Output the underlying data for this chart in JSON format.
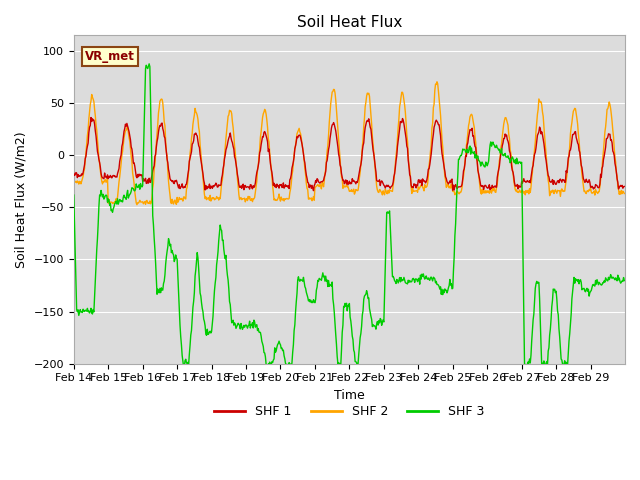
{
  "title": "Soil Heat Flux",
  "xlabel": "Time",
  "ylabel": "Soil Heat Flux (W/m2)",
  "ylim": [
    -200,
    115
  ],
  "xlim": [
    0,
    384
  ],
  "bg_color": "#dcdcdc",
  "fig_color": "#ffffff",
  "shf1_color": "#cc0000",
  "shf2_color": "#ffa500",
  "shf3_color": "#00cc00",
  "label_box_text": "VR_met",
  "legend_labels": [
    "SHF 1",
    "SHF 2",
    "SHF 3"
  ],
  "xtick_labels": [
    "Feb 14",
    "Feb 15",
    "Feb 16",
    "Feb 17",
    "Feb 18",
    "Feb 19",
    "Feb 20",
    "Feb 21",
    "Feb 22",
    "Feb 23",
    "Feb 24",
    "Feb 25",
    "Feb 26",
    "Feb 27",
    "Feb 28",
    "Feb 29"
  ],
  "xtick_positions": [
    0,
    24,
    48,
    72,
    96,
    120,
    144,
    168,
    192,
    216,
    240,
    264,
    288,
    312,
    336,
    360
  ],
  "yticks": [
    -200,
    -150,
    -100,
    -50,
    0,
    50,
    100
  ]
}
